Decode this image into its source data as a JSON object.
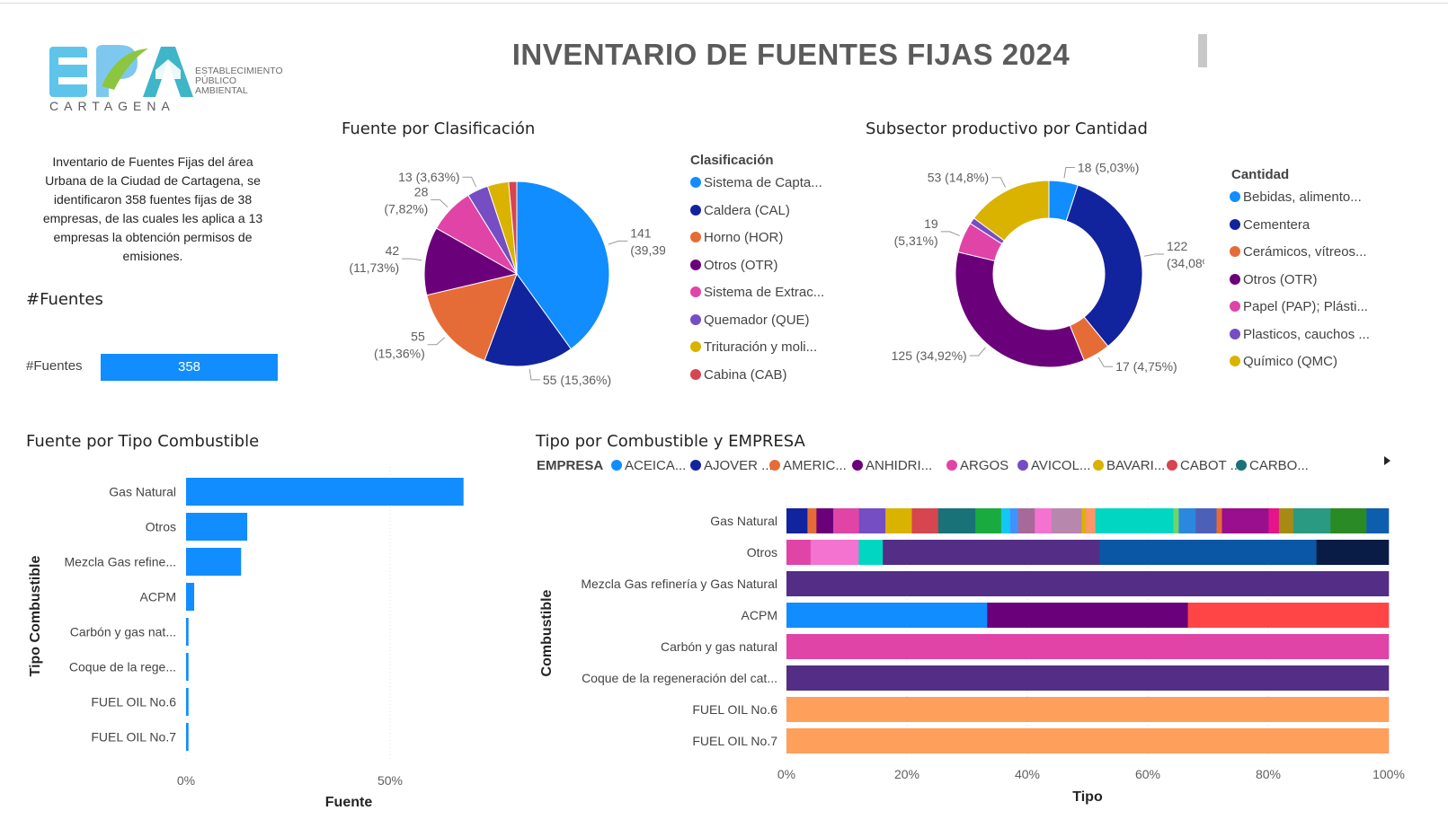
{
  "header": {
    "title": "INVENTARIO DE FUENTES FIJAS 2024"
  },
  "logo": {
    "acronym": "EPA",
    "subtitle_lines": [
      "ESTABLECIMIENTO",
      "PÚBLICO",
      "AMBIENTAL"
    ],
    "city": "CARTAGENA"
  },
  "description": "Inventario de Fuentes Fijas del área Urbana de la Ciudad de Cartagena, se identificaron 358 fuentes fijas de 38 empresas, de las cuales les aplica a 13 empresas la obtención permisos de emisiones.",
  "kpi": {
    "title": "#Fuentes",
    "label": "#Fuentes",
    "value": "358",
    "color": "#118dff"
  },
  "chart_data": [
    {
      "id": "pie",
      "type": "pie",
      "title": "Fuente por Clasificación",
      "legend_title": "Clasificación",
      "legend_placement": "right",
      "categories": [
        "Sistema de Capta...",
        "Caldera (CAL)",
        "Horno (HOR)",
        "Otros (OTR)",
        "Sistema de Extrac...",
        "Quemador (QUE)",
        "Trituración y moli...",
        "Cabina (CAB)"
      ],
      "values": [
        141,
        55,
        55,
        42,
        28,
        13,
        13,
        5
      ],
      "colors": [
        "#118dff",
        "#12239e",
        "#e66c37",
        "#6b007b",
        "#e044a7",
        "#744ec2",
        "#d9b300",
        "#d64550"
      ],
      "labels": [
        [
          "141",
          "(39,39%)"
        ],
        [
          "55 (15,36%)"
        ],
        [
          "55",
          "(15,36%)"
        ],
        [
          "42",
          "(11,73%)"
        ],
        [
          "28",
          "(7,82%)"
        ],
        [
          "13 (3,63%)"
        ],
        [],
        []
      ]
    },
    {
      "id": "donut",
      "type": "pie",
      "title": "Subsector productivo por Cantidad",
      "legend_title": "Cantidad",
      "legend_placement": "right",
      "categories": [
        "Bebidas, alimento...",
        "Cementera",
        "Cerámicos, vítreos...",
        "Otros (OTR)",
        "Papel (PAP); Plásti...",
        "Plasticos, cauchos ...",
        "Químico (QMC)"
      ],
      "values": [
        18,
        122,
        17,
        125,
        19,
        4,
        53
      ],
      "colors": [
        "#118dff",
        "#12239e",
        "#e66c37",
        "#6b007b",
        "#e044a7",
        "#744ec2",
        "#d9b300"
      ],
      "labels": [
        [
          "18 (5,03%)"
        ],
        [
          "122",
          "(34,08%)"
        ],
        [
          "17 (4,75%)"
        ],
        [
          "125 (34,92%)"
        ],
        [
          "19",
          "(5,31%)"
        ],
        [],
        [
          "53 (14,8%)"
        ]
      ]
    },
    {
      "id": "bar",
      "type": "bar",
      "title": "Fuente por Tipo Combustible",
      "xlabel": "Fuente",
      "ylabel": "Tipo Combustible",
      "categories": [
        "Gas Natural",
        "Otros",
        "Mezcla Gas refine...",
        "ACPM",
        "Carbón y gas nat...",
        "Coque de la rege...",
        "FUEL OIL No.6",
        "FUEL OIL No.7"
      ],
      "values": [
        68,
        15,
        13.5,
        2,
        0.6,
        0.6,
        0.6,
        0.6
      ],
      "xticks": [
        "0%",
        "50%"
      ],
      "color": "#118dff"
    },
    {
      "id": "stacked",
      "type": "bar",
      "title": "Tipo por Combustible y EMPRESA",
      "xlabel": "Tipo",
      "ylabel": "Combustible",
      "legend_title": "EMPRESA",
      "legend_placement": "top",
      "legend": [
        {
          "name": "ACEICA...",
          "color": "#118dff"
        },
        {
          "name": "AJOVER ...",
          "color": "#12239e"
        },
        {
          "name": "AMERIC...",
          "color": "#e66c37"
        },
        {
          "name": "ANHIDRI...",
          "color": "#6b007b"
        },
        {
          "name": "ARGOS",
          "color": "#e044a7"
        },
        {
          "name": "AVICOL...",
          "color": "#744ec2"
        },
        {
          "name": "BAVARI...",
          "color": "#d9b300"
        },
        {
          "name": "CABOT ...",
          "color": "#d64550"
        },
        {
          "name": "CARBO...",
          "color": "#197278"
        }
      ],
      "categories": [
        "Gas Natural",
        "Otros",
        "Mezcla Gas refinería y Gas Natural",
        "ACPM",
        "Carbón y gas natural",
        "Coque de la regeneración del cat...",
        "FUEL OIL No.6",
        "FUEL OIL No.7"
      ],
      "xticks": [
        "0%",
        "20%",
        "40%",
        "60%",
        "80%",
        "100%"
      ],
      "rows": [
        {
          "segments": [
            {
              "v": 3.5,
              "c": "#12239e"
            },
            {
              "v": 1.5,
              "c": "#e66c37"
            },
            {
              "v": 2.8,
              "c": "#6b007b"
            },
            {
              "v": 4.3,
              "c": "#e044a7"
            },
            {
              "v": 4.4,
              "c": "#744ec2"
            },
            {
              "v": 4.4,
              "c": "#d9b300"
            },
            {
              "v": 4.4,
              "c": "#d64550"
            },
            {
              "v": 6.2,
              "c": "#197278"
            },
            {
              "v": 4.3,
              "c": "#1aab40"
            },
            {
              "v": 1.5,
              "c": "#15c6f4"
            },
            {
              "v": 1.3,
              "c": "#4092ff"
            },
            {
              "v": 2.8,
              "c": "#a66999"
            },
            {
              "v": 2.8,
              "c": "#f472d0"
            },
            {
              "v": 5.0,
              "c": "#b887ad"
            },
            {
              "v": 0.7,
              "c": "#d9b300"
            },
            {
              "v": 1.6,
              "c": "#fe9666"
            },
            {
              "v": 13.0,
              "c": "#00d6c1"
            },
            {
              "v": 0.9,
              "c": "#6fd46b"
            },
            {
              "v": 2.8,
              "c": "#2c88de"
            },
            {
              "v": 3.5,
              "c": "#4d60b8"
            },
            {
              "v": 0.9,
              "c": "#e66c37"
            },
            {
              "v": 7.8,
              "c": "#9a0f8e"
            },
            {
              "v": 1.7,
              "c": "#e6138a"
            },
            {
              "v": 2.4,
              "c": "#a68a14"
            },
            {
              "v": 6.2,
              "c": "#2a9a82"
            },
            {
              "v": 6.0,
              "c": "#2a8a26"
            },
            {
              "v": 3.7,
              "c": "#0e5eb0"
            }
          ]
        },
        {
          "segments": [
            {
              "v": 4.0,
              "c": "#e044a7"
            },
            {
              "v": 8.0,
              "c": "#f472d0"
            },
            {
              "v": 4.0,
              "c": "#00d6c1"
            },
            {
              "v": 36.0,
              "c": "#532d86"
            },
            {
              "v": 36.0,
              "c": "#0a57a5"
            },
            {
              "v": 12.0,
              "c": "#081c45"
            }
          ]
        },
        {
          "segments": [
            {
              "v": 100,
              "c": "#532d86"
            }
          ]
        },
        {
          "segments": [
            {
              "v": 33.33,
              "c": "#118dff"
            },
            {
              "v": 33.33,
              "c": "#6b007b"
            },
            {
              "v": 33.34,
              "c": "#ff4545"
            }
          ]
        },
        {
          "segments": [
            {
              "v": 100,
              "c": "#e044a7"
            }
          ]
        },
        {
          "segments": [
            {
              "v": 100,
              "c": "#532d86"
            }
          ]
        },
        {
          "segments": [
            {
              "v": 100,
              "c": "#fe9f5b"
            }
          ]
        },
        {
          "segments": [
            {
              "v": 100,
              "c": "#fe9f5b"
            }
          ]
        }
      ]
    }
  ]
}
